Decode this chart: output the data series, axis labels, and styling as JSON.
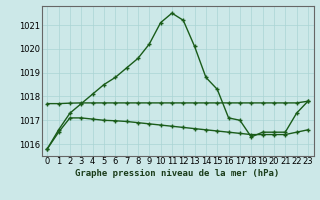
{
  "title": "Graphe pression niveau de la mer (hPa)",
  "background_color": "#cce8e8",
  "plot_bg_color": "#cce8e8",
  "grid_color": "#aad4d4",
  "line_color": "#1a5c1a",
  "border_color": "#336633",
  "hours": [
    0,
    1,
    2,
    3,
    4,
    5,
    6,
    7,
    8,
    9,
    10,
    11,
    12,
    13,
    14,
    15,
    16,
    17,
    18,
    19,
    20,
    21,
    22,
    23
  ],
  "pressure_main": [
    1015.8,
    1016.6,
    1017.3,
    1017.7,
    1018.1,
    1018.5,
    1018.8,
    1019.2,
    1019.6,
    1020.2,
    1021.1,
    1021.5,
    1021.2,
    1020.1,
    1018.8,
    1018.3,
    1017.1,
    1017.0,
    1016.3,
    1016.5,
    1016.5,
    1016.5,
    1017.3,
    1017.8
  ],
  "pressure_max": [
    1017.7,
    1017.7,
    1017.72,
    1017.73,
    1017.73,
    1017.73,
    1017.73,
    1017.73,
    1017.73,
    1017.73,
    1017.73,
    1017.73,
    1017.73,
    1017.73,
    1017.73,
    1017.73,
    1017.73,
    1017.73,
    1017.73,
    1017.73,
    1017.73,
    1017.73,
    1017.73,
    1017.8
  ],
  "pressure_min": [
    1015.8,
    1016.5,
    1017.1,
    1017.1,
    1017.05,
    1017.0,
    1016.98,
    1016.95,
    1016.9,
    1016.85,
    1016.8,
    1016.75,
    1016.7,
    1016.65,
    1016.6,
    1016.55,
    1016.5,
    1016.45,
    1016.4,
    1016.4,
    1016.4,
    1016.4,
    1016.5,
    1016.6
  ],
  "ylim": [
    1015.5,
    1021.8
  ],
  "yticks": [
    1016,
    1017,
    1018,
    1019,
    1020,
    1021
  ],
  "tick_fontsize": 6,
  "title_fontsize": 6.5
}
